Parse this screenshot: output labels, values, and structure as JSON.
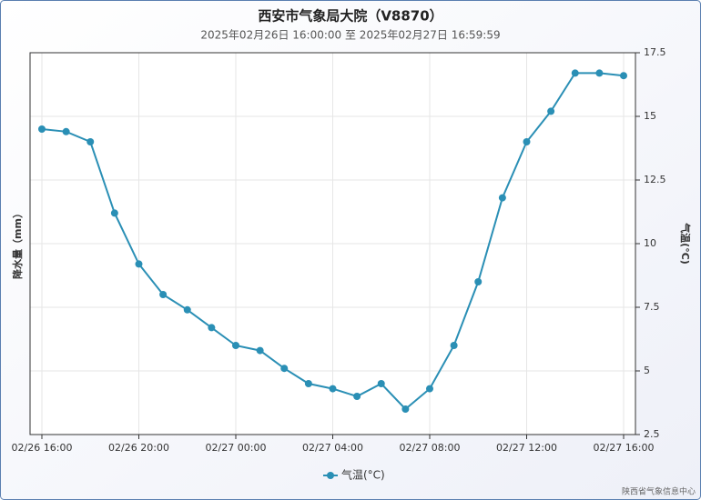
{
  "chart_data": {
    "type": "line",
    "title": "西安市气象局大院（V8870）",
    "subtitle": "2025年02月26日 16:00:00 至 2025年02月27日 16:59:59",
    "y_left_label": "降水量（mm）",
    "y2_label": "气温(°C)",
    "credit": "陕西省气象信息中心",
    "categories": [
      "02/26 16:00",
      null,
      null,
      null,
      "02/26 20:00",
      null,
      null,
      null,
      "02/27 00:00",
      null,
      null,
      null,
      "02/27 04:00",
      null,
      null,
      null,
      "02/27 08:00",
      null,
      null,
      null,
      "02/27 12:00",
      null,
      null,
      null,
      "02/27 16:00"
    ],
    "series": [
      {
        "name": "气温(°C)",
        "color": "#2a8fb5",
        "axis": "y2",
        "values": [
          14.5,
          14.4,
          14.0,
          11.2,
          9.2,
          8.0,
          7.4,
          6.7,
          6.0,
          5.8,
          5.1,
          4.5,
          4.3,
          4.0,
          4.5,
          3.5,
          4.3,
          6.0,
          8.5,
          11.8,
          14.0,
          15.2,
          16.7,
          16.7,
          16.6
        ]
      }
    ],
    "y2lim": [
      2.5,
      17.5
    ],
    "y2ticks": [
      2.5,
      5,
      7.5,
      10,
      12.5,
      15,
      17.5
    ],
    "grid": true
  }
}
